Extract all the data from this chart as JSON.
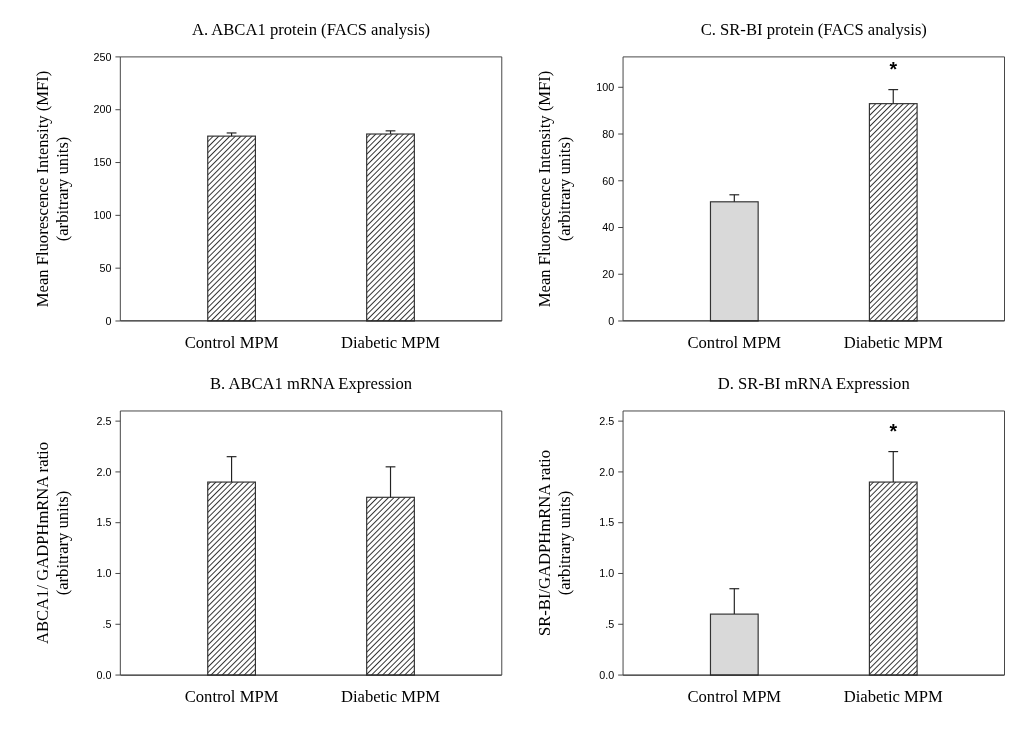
{
  "chart_data": [
    {
      "type": "bar",
      "title": "A. ABCA1 protein (FACS analysis)",
      "ylabel": "Mean Fluorescence Intensity (MFI)\n(arbitrary units)",
      "categories": [
        "Control MPM",
        "Diabetic MPM"
      ],
      "values": [
        175,
        177
      ],
      "errors": [
        [
          175,
          178
        ],
        [
          177,
          180
        ]
      ],
      "colors": [
        "#333333",
        "#333333"
      ],
      "ylim": [
        0,
        250
      ],
      "yticks": [
        0,
        50,
        100,
        150,
        200,
        250
      ]
    },
    {
      "type": "bar",
      "title": "C. SR-BI protein (FACS analysis)",
      "ylabel": "Mean Fluorescence Intensity (MFI)\n(arbitrary units)",
      "categories": [
        "Control MPM",
        "Diabetic MPM"
      ],
      "values": [
        51,
        93
      ],
      "errors": [
        [
          51,
          54
        ],
        [
          93,
          99
        ]
      ],
      "colors": [
        "#d9d9d9",
        "#333333"
      ],
      "ylim": [
        0,
        113
      ],
      "yticks": [
        0,
        20,
        40,
        60,
        80,
        100
      ],
      "annotations": [
        "*"
      ]
    },
    {
      "type": "bar",
      "title": "B. ABCA1 mRNA Expression",
      "ylabel": "ABCA1/ GADPHmRNA ratio\n(arbitrary units)",
      "categories": [
        "Control MPM",
        "Diabetic MPM"
      ],
      "values": [
        1.9,
        1.75
      ],
      "errors": [
        [
          1.9,
          2.15
        ],
        [
          1.75,
          2.05
        ]
      ],
      "colors": [
        "#333333",
        "#333333"
      ],
      "ylim": [
        0,
        2.6
      ],
      "yticks": [
        {
          "value": 0,
          "label": "0.0"
        },
        {
          "value": 0.5,
          "label": ".5"
        },
        {
          "value": 1,
          "label": "1.0"
        },
        {
          "value": 1.5,
          "label": "1.5"
        },
        {
          "value": 2,
          "label": "2.0"
        },
        {
          "value": 2.5,
          "label": "2.5"
        }
      ]
    },
    {
      "type": "bar",
      "title": "D. SR-BI mRNA Expression",
      "ylabel": "SR-BI/GADPHmRNA ratio\n(arbitrary units)",
      "categories": [
        "Control MPM",
        "Diabetic MPM"
      ],
      "values": [
        0.6,
        1.9
      ],
      "errors": [
        [
          0.6,
          0.85
        ],
        [
          1.9,
          2.2
        ]
      ],
      "colors": [
        "#d9d9d9",
        "#333333"
      ],
      "ylim": [
        0,
        2.6
      ],
      "yticks": [
        {
          "value": 0,
          "label": "0.0"
        },
        {
          "value": 0.5,
          "label": ".5"
        },
        {
          "value": 1,
          "label": "1.0"
        },
        {
          "value": 1.5,
          "label": "1.5"
        },
        {
          "value": 2,
          "label": "2.0"
        },
        {
          "value": 2.5,
          "label": "2.5"
        }
      ],
      "annotations": [
        "*"
      ]
    }
  ]
}
